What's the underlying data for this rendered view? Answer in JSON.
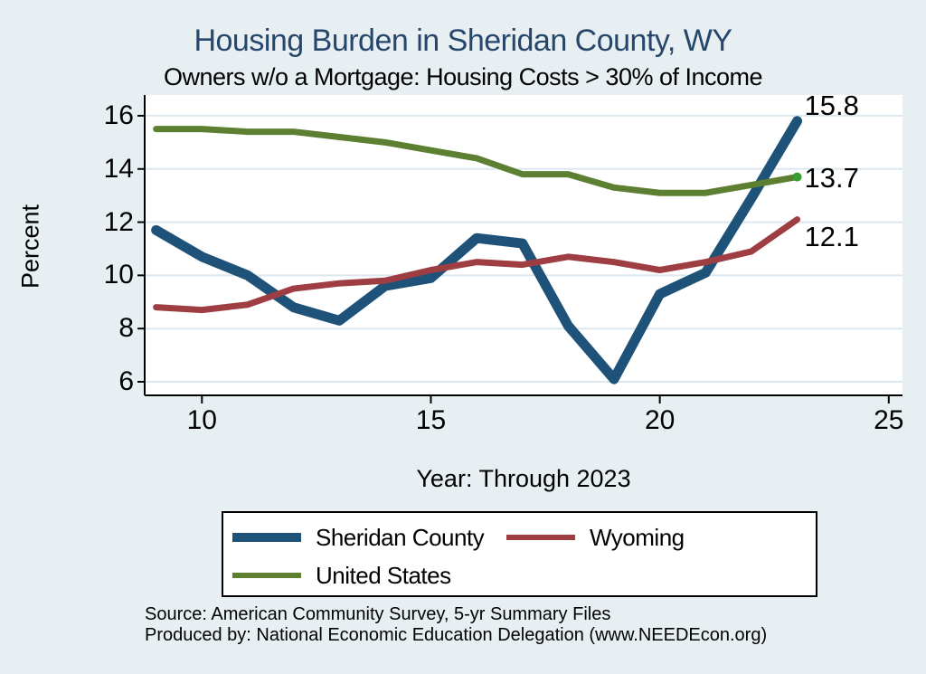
{
  "page": {
    "background_color": "#e8eff2",
    "plot_background": "#ffffff",
    "gridline_color": "#dce8f0",
    "axis_color": "#000000"
  },
  "header": {
    "title": "Housing Burden in Sheridan County, WY",
    "title_color": "#26476b",
    "subtitle": "Owners w/o a Mortgage: Housing Costs > 30% of Income"
  },
  "chart_data": {
    "type": "line",
    "x": [
      9,
      10,
      11,
      12,
      13,
      14,
      15,
      16,
      17,
      18,
      19,
      20,
      21,
      22,
      23
    ],
    "series": [
      {
        "name": "Sheridan County",
        "color": "#1f5278",
        "line_width": 11,
        "values": [
          11.7,
          10.7,
          10.0,
          8.8,
          8.3,
          9.6,
          9.9,
          11.4,
          11.2,
          8.1,
          6.1,
          9.3,
          10.1,
          12.9,
          15.8
        ],
        "end_label": "15.8",
        "end_label_dy": -17
      },
      {
        "name": "Wyoming",
        "color": "#9e3d42",
        "line_width": 7,
        "values": [
          8.8,
          8.7,
          8.9,
          9.5,
          9.7,
          9.8,
          10.2,
          10.5,
          10.4,
          10.7,
          10.5,
          10.2,
          10.5,
          10.9,
          12.1
        ],
        "end_label": "12.1",
        "end_label_dy": 19
      },
      {
        "name": "United States",
        "color": "#5c7f31",
        "line_width": 7,
        "values": [
          15.5,
          15.5,
          15.4,
          15.4,
          15.2,
          15.0,
          14.7,
          14.4,
          13.8,
          13.8,
          13.3,
          13.1,
          13.1,
          13.4,
          13.7
        ],
        "end_label": "13.7",
        "end_label_dy": 1,
        "end_marker_color": "#33a02c"
      }
    ],
    "title": "Housing Burden in Sheridan County, WY",
    "subtitle": "Owners w/o a Mortgage: Housing Costs > 30% of Income",
    "xlabel": "Year: Through 2023",
    "ylabel": "Percent",
    "x_ticks": [
      10,
      15,
      20,
      25
    ],
    "y_ticks": [
      6,
      8,
      10,
      12,
      14,
      16
    ],
    "xlim": [
      8.75,
      25.3
    ],
    "ylim": [
      5.49,
      16.78
    ],
    "grid": "horizontal gridlines at y ticks",
    "legend_position": "bottom"
  },
  "legend": {
    "items": [
      {
        "label": "Sheridan County"
      },
      {
        "label": "Wyoming"
      },
      {
        "label": "United States"
      }
    ]
  },
  "footer": {
    "line1": "Source: American Community Survey, 5-yr Summary Files",
    "line2": "Produced by: National Economic Education Delegation (www.NEEDEcon.org)"
  }
}
